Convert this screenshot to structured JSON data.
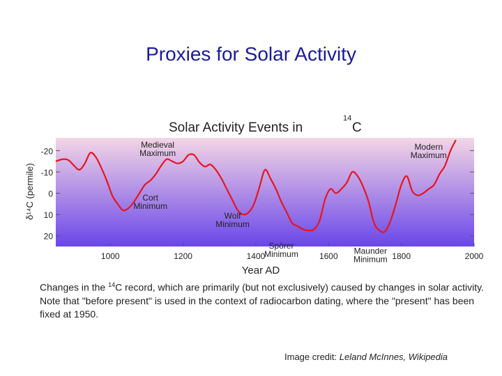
{
  "slide": {
    "title": "Proxies for Solar Activity",
    "caption": {
      "before_sup": "Changes in the ",
      "sup": "14",
      "after_sup": "C record, which are primarily (but not exclusively) caused by changes in solar activity. Note that \"before present\" is used in the context of radiocarbon dating, where the \"present\" has been fixed at 1950."
    },
    "credit": {
      "prefix": "Image credit: ",
      "author": "Leland McInnes, Wikipedia"
    }
  },
  "chart_data": {
    "type": "line",
    "title": "Solar Activity Events in",
    "title_sup": "14",
    "title_suffix": "C",
    "xlabel": "Year AD",
    "ylabel": "δ¹⁴C (permile)",
    "xlim": [
      850,
      2000
    ],
    "ylim": [
      -26,
      25
    ],
    "y_inverted": true,
    "xticks": [
      1000,
      1200,
      1400,
      1600,
      1800,
      2000
    ],
    "yticks": [
      -20,
      -10,
      0,
      10,
      20
    ],
    "grid": false,
    "line_color": "#e8141c",
    "background_gradient": [
      "#f4d6e6",
      "#6a46e8"
    ],
    "series": [
      {
        "x": [
          850,
          870,
          885,
          900,
          915,
          930,
          945,
          960,
          975,
          990,
          1005,
          1020,
          1035,
          1050,
          1065,
          1080,
          1095,
          1110,
          1125,
          1140,
          1155,
          1170,
          1185,
          1200,
          1215,
          1230,
          1245,
          1260,
          1275,
          1290,
          1305,
          1320,
          1335,
          1350,
          1365,
          1380,
          1395,
          1410,
          1425,
          1440,
          1455,
          1470,
          1485,
          1500,
          1515,
          1530,
          1545,
          1560,
          1575,
          1590,
          1605,
          1620,
          1635,
          1650,
          1665,
          1680,
          1695,
          1710,
          1725,
          1740,
          1755,
          1770,
          1785,
          1800,
          1815,
          1830,
          1845,
          1860,
          1875,
          1890,
          1905,
          1920,
          1935,
          1950
        ],
        "y": [
          -15,
          -16,
          -15.5,
          -13,
          -11,
          -14,
          -19,
          -17,
          -12,
          -6,
          1,
          5,
          8,
          7,
          4,
          0,
          -4,
          -6,
          -9,
          -13,
          -16,
          -15,
          -14,
          -15,
          -18,
          -18,
          -14.5,
          -12.5,
          -13.5,
          -11,
          -7,
          -2,
          3,
          8,
          10,
          9,
          5,
          -3,
          -11,
          -7,
          -2,
          4,
          9,
          14,
          15.5,
          17,
          17.5,
          17,
          13,
          3,
          -2,
          0,
          -2,
          -5,
          -10,
          -8,
          -3,
          4,
          14,
          17.5,
          18,
          13,
          5,
          -4,
          -8,
          -1,
          1,
          0,
          -2,
          -4,
          -9,
          -13,
          -20,
          -25
        ]
      }
    ],
    "annotations": [
      {
        "lines": [
          "Medieval",
          "Maximum"
        ],
        "x": 1130,
        "y": -21.5
      },
      {
        "lines": [
          "Cort",
          "Minimum"
        ],
        "x": 1110,
        "y": 3.5
      },
      {
        "lines": [
          "Wolf",
          "Minimum"
        ],
        "x": 1336,
        "y": 12
      },
      {
        "lines": [
          "Spörer",
          "Minimum"
        ],
        "x": 1470,
        "y": 26
      },
      {
        "lines": [
          "Maunder",
          "Minimum"
        ],
        "x": 1715,
        "y": 28.5
      },
      {
        "lines": [
          "Modern",
          "Maximum"
        ],
        "x": 1875,
        "y": -20.5
      }
    ]
  }
}
